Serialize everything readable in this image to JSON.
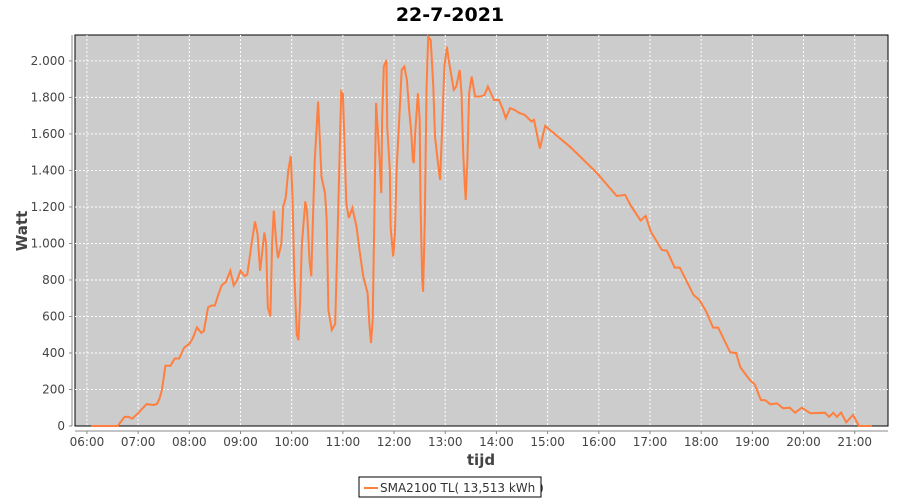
{
  "chart_data": {
    "type": "line",
    "title": "22-7-2021",
    "xlabel": "tijd",
    "ylabel": "Watt",
    "ylim": [
      0,
      2142
    ],
    "xlim": [
      "05:46",
      "21:39"
    ],
    "grid": true,
    "legend_placement": "bottom",
    "colors": {
      "line": "#FF7F3F",
      "plot_bg": "#CCCCCC",
      "grid": "#FFFFFF"
    },
    "y_ticks": [
      0,
      200,
      400,
      600,
      800,
      1000,
      1200,
      1400,
      1600,
      1800,
      2000
    ],
    "y_tick_labels": [
      "0",
      "200",
      "400",
      "600",
      "800",
      "1.000",
      "1.200",
      "1.400",
      "1.600",
      "1.800",
      "2.000"
    ],
    "x_tick_labels": [
      "06:00",
      "07:00",
      "08:00",
      "09:00",
      "10:00",
      "11:00",
      "12:00",
      "13:00",
      "14:00",
      "15:00",
      "16:00",
      "17:00",
      "18:00",
      "19:00",
      "20:00",
      "21:00"
    ],
    "series": [
      {
        "name": "SMA2100 TL( 13,513 kWh )",
        "x": [
          "06:05",
          "06:36",
          "06:44",
          "06:49",
          "06:53",
          "07:00",
          "07:06",
          "07:10",
          "07:18",
          "07:22",
          "07:25",
          "07:28",
          "07:32",
          "07:38",
          "07:43",
          "07:48",
          "07:54",
          "08:00",
          "08:04",
          "08:09",
          "08:14",
          "08:17",
          "08:22",
          "08:26",
          "08:30",
          "08:34",
          "08:38",
          "08:43",
          "08:48",
          "08:52",
          "08:56",
          "09:00",
          "09:05",
          "09:08",
          "09:13",
          "09:17",
          "09:20",
          "09:23",
          "09:28",
          "09:30",
          "09:32",
          "09:35",
          "09:37",
          "09:39",
          "09:42",
          "09:44",
          "09:48",
          "09:50",
          "09:53",
          "09:56",
          "09:59",
          "10:01",
          "10:03",
          "10:06",
          "10:08",
          "10:10",
          "10:12",
          "10:16",
          "10:18",
          "10:21",
          "10:23",
          "10:24",
          "10:27",
          "10:31",
          "10:35",
          "10:39",
          "10:41",
          "10:43",
          "10:47",
          "10:51",
          "10:54",
          "10:58",
          "11:00",
          "11:02",
          "11:04",
          "11:07",
          "11:11",
          "11:16",
          "11:20",
          "11:24",
          "11:29",
          "11:31",
          "11:33",
          "11:35",
          "11:37",
          "11:39",
          "11:41",
          "11:43",
          "11:45",
          "11:46",
          "11:48",
          "11:51",
          "11:52",
          "11:55",
          "11:56",
          "11:59",
          "12:01",
          "12:03",
          "12:06",
          "12:09",
          "12:12",
          "12:15",
          "12:18",
          "12:20",
          "12:22",
          "12:23",
          "12:25",
          "12:28",
          "12:30",
          "12:31",
          "12:33",
          "12:34",
          "12:36",
          "12:38",
          "12:40",
          "12:43",
          "12:46",
          "12:48",
          "12:51",
          "12:54",
          "12:56",
          "12:59",
          "13:02",
          "13:04",
          "13:08",
          "13:10",
          "13:13",
          "13:17",
          "13:19",
          "13:21",
          "13:23",
          "13:24",
          "13:26",
          "13:28",
          "13:31",
          "13:35",
          "13:41",
          "13:46",
          "13:50",
          "13:57",
          "14:03",
          "14:07",
          "14:11",
          "14:16",
          "14:21",
          "14:27",
          "14:33",
          "14:41",
          "14:44",
          "14:51",
          "14:57",
          "15:27",
          "15:58",
          "16:21",
          "16:31",
          "16:37",
          "16:49",
          "16:55",
          "17:01",
          "17:14",
          "17:20",
          "17:29",
          "17:35",
          "17:51",
          "17:58",
          "18:06",
          "18:14",
          "18:20",
          "18:34",
          "18:41",
          "18:46",
          "18:57",
          "19:03",
          "19:10",
          "19:15",
          "19:21",
          "19:29",
          "19:36",
          "19:44",
          "19:50",
          "19:58",
          "20:08",
          "20:25",
          "20:30",
          "20:35",
          "20:39",
          "20:44",
          "20:50",
          "20:58",
          "21:05",
          "21:20"
        ],
        "y": [
          0,
          0,
          50,
          50,
          40,
          70,
          100,
          120,
          115,
          120,
          150,
          200,
          330,
          330,
          370,
          370,
          430,
          450,
          480,
          540,
          510,
          520,
          650,
          660,
          660,
          720,
          770,
          790,
          850,
          770,
          800,
          850,
          820,
          830,
          1000,
          1120,
          1050,
          850,
          1060,
          1000,
          650,
          600,
          1000,
          1180,
          1000,
          920,
          1000,
          1200,
          1250,
          1400,
          1480,
          1250,
          850,
          500,
          470,
          700,
          1000,
          1230,
          1180,
          900,
          820,
          1000,
          1450,
          1777,
          1366,
          1275,
          1129,
          636,
          526,
          560,
          1092,
          1832,
          1820,
          1530,
          1221,
          1140,
          1195,
          1092,
          948,
          818,
          728,
          563,
          454,
          580,
          1167,
          1770,
          1622,
          1457,
          1276,
          1677,
          1969,
          2005,
          1640,
          1403,
          1092,
          928,
          1057,
          1403,
          1677,
          1951,
          1969,
          1896,
          1714,
          1622,
          1457,
          1440,
          1622,
          1823,
          1677,
          1221,
          800,
          736,
          1129,
          1841,
          2133,
          2115,
          1860,
          1585,
          1457,
          1348,
          1585,
          1969,
          2078,
          2005,
          1896,
          1841,
          1860,
          1951,
          1823,
          1494,
          1311,
          1238,
          1457,
          1823,
          1914,
          1805,
          1805,
          1814,
          1860,
          1786,
          1786,
          1741,
          1686,
          1741,
          1732,
          1714,
          1705,
          1668,
          1677,
          1521,
          1644,
          1527,
          1385,
          1260,
          1266,
          1211,
          1125,
          1151,
          1065,
          964,
          960,
          868,
          868,
          718,
          690,
          626,
          539,
          539,
          404,
          400,
          321,
          252,
          227,
          142,
          142,
          119,
          124,
          97,
          100,
          73,
          100,
          70,
          73,
          50,
          73,
          50,
          73,
          20,
          60,
          0,
          0
        ]
      }
    ]
  }
}
